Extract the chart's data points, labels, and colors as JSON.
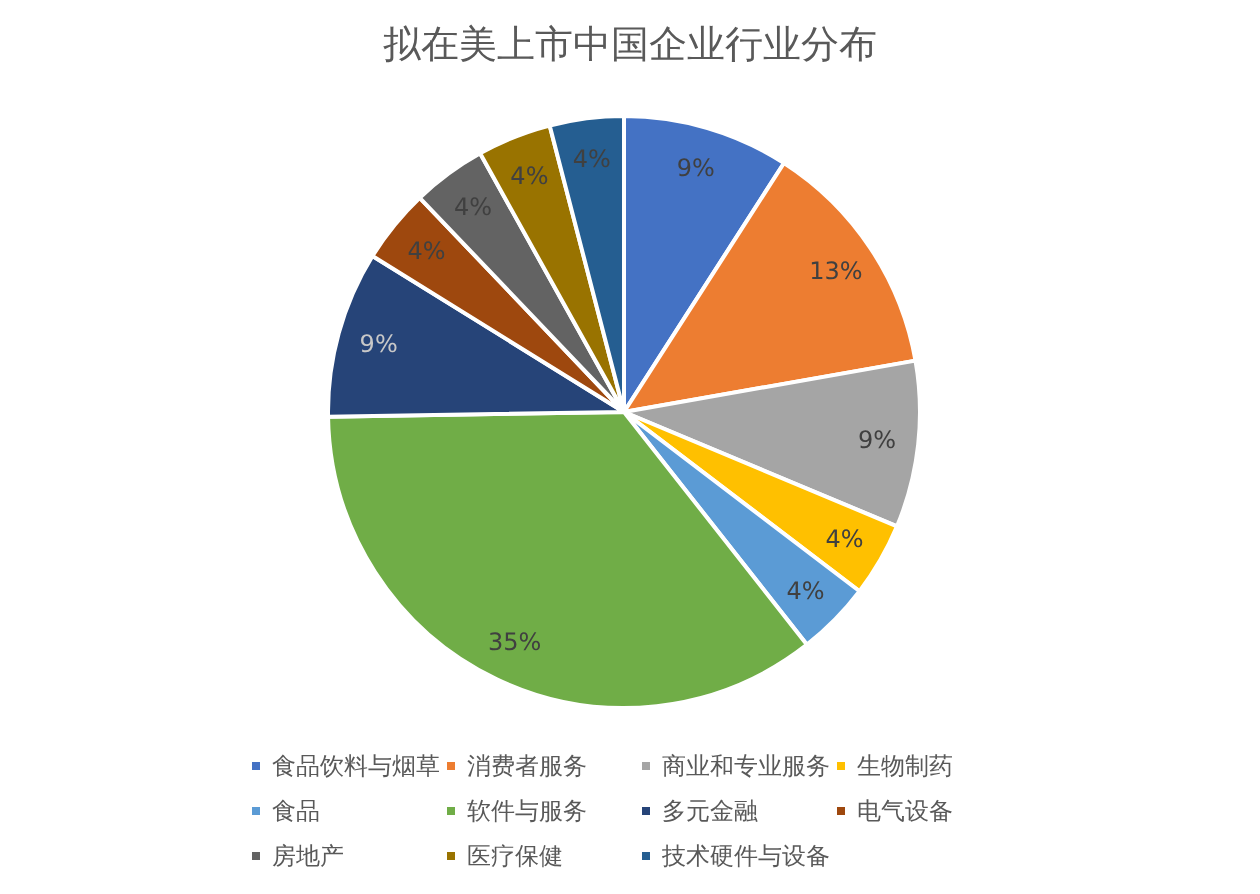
{
  "chart_data": {
    "type": "pie",
    "title": "拟在美上市中国企业行业分布",
    "categories": [
      "食品饮料与烟草",
      "消费者服务",
      "商业和专业服务",
      "生物制药",
      "食品",
      "软件与服务",
      "多元金融",
      "电气设备",
      "房地产",
      "医疗保健",
      "技术硬件与设备"
    ],
    "values": [
      9,
      13,
      9,
      4,
      4,
      35,
      9,
      4,
      4,
      4,
      4
    ],
    "value_labels": [
      "9%",
      "13%",
      "9%",
      "4%",
      "4%",
      "35%",
      "9%",
      "4%",
      "4%",
      "4%",
      "4%"
    ],
    "colors": [
      "#4472c4",
      "#ed7d31",
      "#a5a5a5",
      "#ffc000",
      "#5b9bd5",
      "#70ad47",
      "#264478",
      "#9e480e",
      "#636363",
      "#997300",
      "#255e91"
    ],
    "legend": "bottom"
  }
}
